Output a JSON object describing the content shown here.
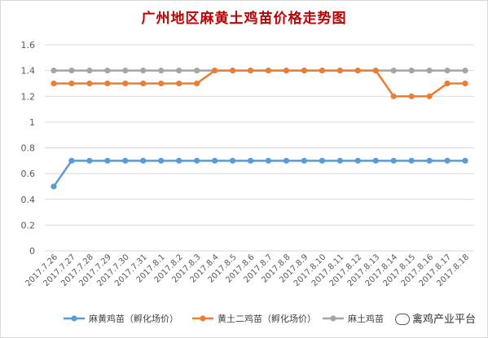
{
  "chart_data": {
    "type": "line",
    "title": "广州地区麻黄土鸡苗价格走势图",
    "xlabel": "",
    "ylabel": "",
    "ylim": [
      0,
      1.6
    ],
    "yticks": [
      "0",
      "0.2",
      "0.4",
      "0.6",
      "0.8",
      "1",
      "1.2",
      "1.4",
      "1.6"
    ],
    "grid": true,
    "legend_position": "bottom",
    "categories": [
      "2017.7.26",
      "2017.7.27",
      "2017.7.28",
      "2017.7.29",
      "2017.7.30",
      "2017.7.31",
      "2017.8.1",
      "2017.8.2",
      "2017.8.3",
      "2017.8.4",
      "2017.8.5",
      "2017.8.6",
      "2017.8.7",
      "2017.8.8",
      "2017.8.9",
      "2017.8.10",
      "2017.8.11",
      "2017.8.12",
      "2017.8.13",
      "2017.8.14",
      "2017.8.15",
      "2017.8.16",
      "2017.8.17",
      "2017.8.18"
    ],
    "series": [
      {
        "name": "麻黄鸡苗（孵化场价）",
        "color": "#5b9bd5",
        "values": [
          0.5,
          0.7,
          0.7,
          0.7,
          0.7,
          0.7,
          0.7,
          0.7,
          0.7,
          0.7,
          0.7,
          0.7,
          0.7,
          0.7,
          0.7,
          0.7,
          0.7,
          0.7,
          0.7,
          0.7,
          0.7,
          0.7,
          0.7,
          0.7
        ]
      },
      {
        "name": "黄土二鸡苗（孵化场价）",
        "color": "#ed7d31",
        "values": [
          1.3,
          1.3,
          1.3,
          1.3,
          1.3,
          1.3,
          1.3,
          1.3,
          1.3,
          1.4,
          1.4,
          1.4,
          1.4,
          1.4,
          1.4,
          1.4,
          1.4,
          1.4,
          1.4,
          1.2,
          1.2,
          1.2,
          1.3,
          1.3
        ]
      },
      {
        "name": "麻土鸡苗",
        "color": "#a5a5a5",
        "values": [
          1.4,
          1.4,
          1.4,
          1.4,
          1.4,
          1.4,
          1.4,
          1.4,
          1.4,
          1.4,
          1.4,
          1.4,
          1.4,
          1.4,
          1.4,
          1.4,
          1.4,
          1.4,
          1.4,
          1.4,
          1.4,
          1.4,
          1.4,
          1.4
        ]
      }
    ]
  },
  "watermark": {
    "text": "禽鸡产业平台",
    "icon": "wechat-icon"
  }
}
